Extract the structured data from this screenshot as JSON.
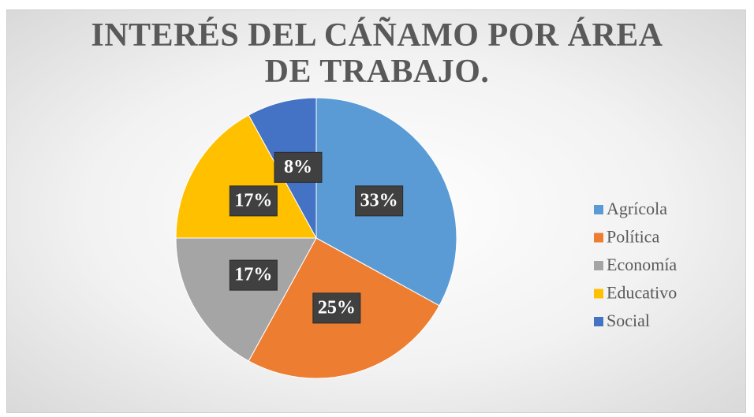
{
  "chart_data": {
    "type": "pie",
    "title": "INTERÉS DEL CÁÑAMO POR ÁREA DE TRABAJO.",
    "categories": [
      "Agrícola",
      "Política",
      "Economía",
      "Educativo",
      "Social"
    ],
    "values": [
      33,
      25,
      17,
      17,
      8
    ],
    "value_labels": [
      "33%",
      "25%",
      "17%",
      "17%",
      "8%"
    ],
    "colors": [
      "#5b9bd5",
      "#ed7d31",
      "#a5a5a5",
      "#ffc000",
      "#4472c4"
    ],
    "legend": "right"
  }
}
